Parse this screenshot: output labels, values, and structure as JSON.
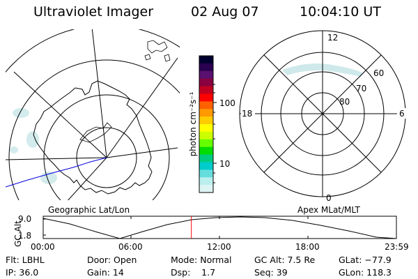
{
  "header": {
    "instrument": "Ultraviolet Imager",
    "date": "02 Aug 07",
    "time": "10:04:10 UT"
  },
  "colorbar": {
    "unit_label": "photon cm⁻²s⁻¹",
    "ticks": [
      "100",
      "10"
    ],
    "colors": [
      "#000030",
      "#2a0050",
      "#5a1070",
      "#8a0040",
      "#c00020",
      "#ff0000",
      "#ff6000",
      "#ff9900",
      "#ffcc00",
      "#ffff00",
      "#ccff00",
      "#66ff00",
      "#00dd00",
      "#00cc80",
      "#00cccc",
      "#66dddd",
      "#bbeeee",
      "#ddf4f4"
    ]
  },
  "left_map": {
    "label": "Geographic Lat/Lon"
  },
  "right_map": {
    "label": "Apex MLat/MLT",
    "mlt_labels": {
      "top": "12",
      "left": "18",
      "right": "6",
      "bottom": "0"
    },
    "mlat_labels": [
      "60",
      "70",
      "80"
    ]
  },
  "timeline": {
    "y_label": "GC Alt",
    "y_ticks": [
      "9.0",
      "1.8"
    ],
    "x_ticks": [
      "00:00",
      "06:00",
      "12:00",
      "18:00",
      "23:59"
    ],
    "current_time_marker": "10:04:10",
    "marker_color": "#ff0000"
  },
  "info": {
    "row1": {
      "filter": "Flt: LBHL",
      "door": "Door: Open",
      "mode": "Mode: Normal",
      "gc_alt": "GC Alt: 7.5 Re",
      "glat": "GLat: −77.9"
    },
    "row2": {
      "ip": "IP: 36.0",
      "gain": "Gain: 14",
      "dsp": "Dsp:    1.7",
      "seq": "Seq: 39",
      "glon": "GLon: 118.3"
    }
  }
}
